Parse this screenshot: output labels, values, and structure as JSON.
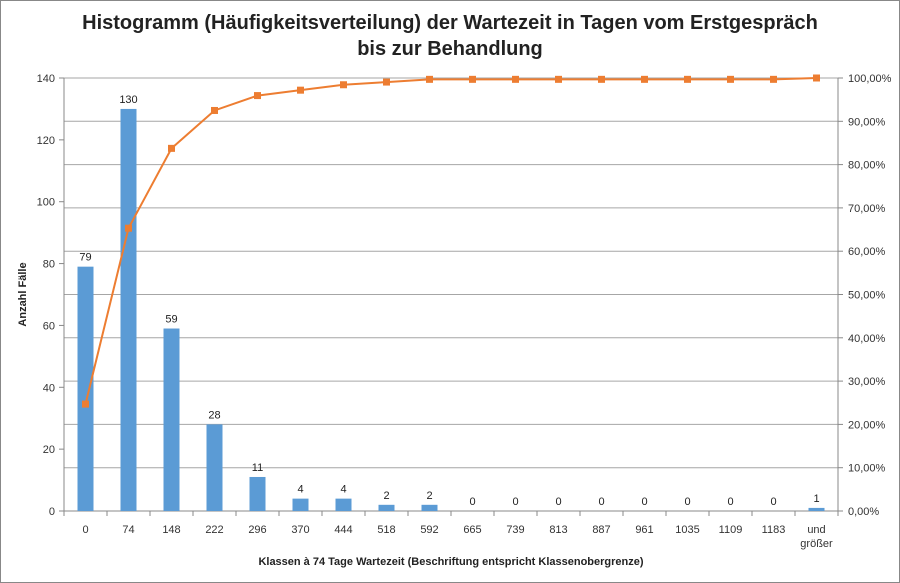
{
  "chart_data": {
    "type": "bar+line",
    "title_line1": "Histogramm (Häufigkeitsverteilung) der Wartezeit in Tagen vom Erstgespräch",
    "title_line2": "bis zur Behandlung",
    "xlabel": "Klassen à 74 Tage Wartezeit (Beschriftung entspricht Klassenobergrenze)",
    "ylabel": "Anzahl Fälle",
    "categories": [
      "0",
      "74",
      "148",
      "222",
      "296",
      "370",
      "444",
      "518",
      "592",
      "665",
      "739",
      "813",
      "887",
      "961",
      "1035",
      "1109",
      "1183",
      "und größer"
    ],
    "series": [
      {
        "type": "bar",
        "axis": "left",
        "color": "#5B9BD5",
        "values": [
          79,
          130,
          59,
          28,
          11,
          4,
          4,
          2,
          2,
          0,
          0,
          0,
          0,
          0,
          0,
          0,
          0,
          1
        ]
      },
      {
        "type": "line",
        "axis": "right",
        "color": "#ED7D31",
        "marker": "square",
        "values": [
          24.69,
          65.31,
          83.75,
          92.5,
          95.94,
          97.19,
          98.44,
          99.06,
          99.69,
          99.69,
          99.69,
          99.69,
          99.69,
          99.69,
          99.69,
          99.69,
          99.69,
          100
        ]
      }
    ],
    "ylim": [
      0,
      140
    ],
    "yticks": [
      0,
      20,
      40,
      60,
      80,
      100,
      120,
      140
    ],
    "y2lim": [
      0,
      100
    ],
    "y2ticks": [
      "0,00%",
      "10,00%",
      "20,00%",
      "30,00%",
      "40,00%",
      "50,00%",
      "60,00%",
      "70,00%",
      "80,00%",
      "90,00%",
      "100,00%"
    ],
    "grid": "horizontal at right-axis ticks",
    "data_labels": true
  }
}
